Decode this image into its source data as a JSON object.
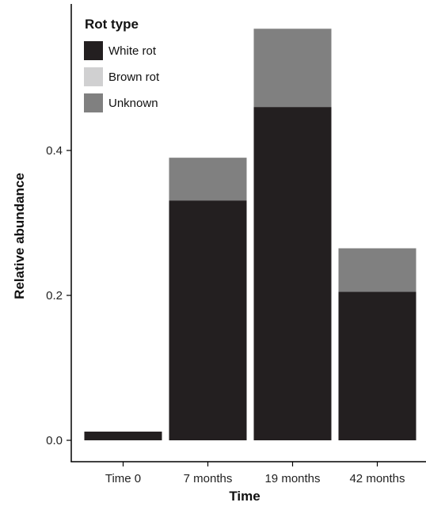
{
  "chart_data": {
    "type": "bar",
    "stacked": true,
    "categories": [
      "Time 0",
      "7 months",
      "19 months",
      "42 months"
    ],
    "series": [
      {
        "name": "White rot",
        "color": "#231f20",
        "values": [
          0.012,
          0.331,
          0.46,
          0.205
        ]
      },
      {
        "name": "Brown rot",
        "color": "#d0d0d1",
        "values": [
          0,
          0,
          0,
          0
        ]
      },
      {
        "name": "Unknown",
        "color": "#808080",
        "values": [
          0,
          0.059,
          0.108,
          0.06
        ]
      }
    ],
    "xlabel": "Time",
    "ylabel": "Relative abundance",
    "ylim": [
      0,
      0.585
    ],
    "yticks": [
      0.0,
      0.2,
      0.4
    ],
    "ytick_labels": [
      "0.0",
      "0.2",
      "0.4"
    ],
    "legend": {
      "title": "Rot type",
      "position": "top-left"
    },
    "grid": false
  }
}
